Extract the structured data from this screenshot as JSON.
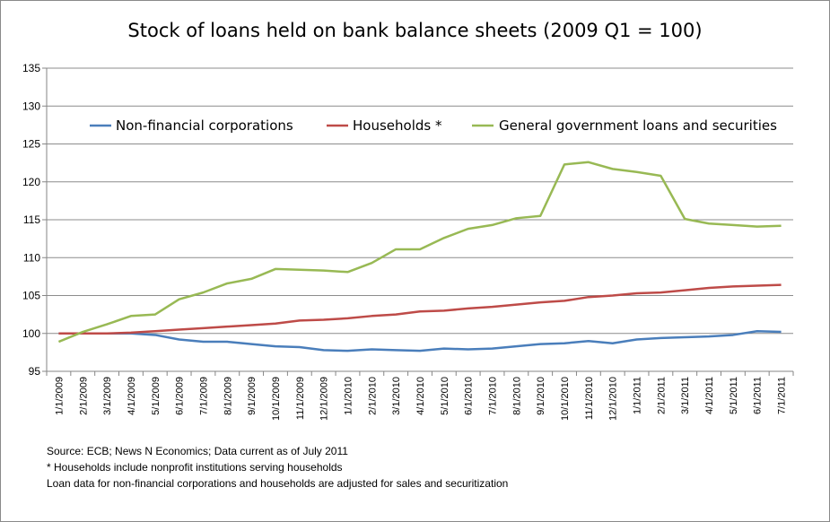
{
  "chart_data": {
    "type": "line",
    "title": "Stock of loans held on bank balance sheets (2009 Q1 = 100)",
    "xlabel": "",
    "ylabel": "",
    "ylim": [
      95,
      135
    ],
    "yticks": [
      95,
      100,
      105,
      110,
      115,
      120,
      125,
      130,
      135
    ],
    "grid": true,
    "legend_position": "top",
    "categories": [
      "1/1/2009",
      "2/1/2009",
      "3/1/2009",
      "4/1/2009",
      "5/1/2009",
      "6/1/2009",
      "7/1/2009",
      "8/1/2009",
      "9/1/2009",
      "10/1/2009",
      "11/1/2009",
      "12/1/2009",
      "1/1/2010",
      "2/1/2010",
      "3/1/2010",
      "4/1/2010",
      "5/1/2010",
      "6/1/2010",
      "7/1/2010",
      "8/1/2010",
      "9/1/2010",
      "10/1/2010",
      "11/1/2010",
      "12/1/2010",
      "1/1/2011",
      "2/1/2011",
      "3/1/2011",
      "4/1/2011",
      "5/1/2011",
      "6/1/2011",
      "7/1/2011"
    ],
    "series": [
      {
        "name": "Non-financial corporations",
        "color": "#4a7ebb",
        "values": [
          100.0,
          100.0,
          100.0,
          100.0,
          99.8,
          99.2,
          98.9,
          98.9,
          98.6,
          98.3,
          98.2,
          97.8,
          97.7,
          97.9,
          97.8,
          97.7,
          98.0,
          97.9,
          98.0,
          98.3,
          98.6,
          98.7,
          99.0,
          98.7,
          99.2,
          99.4,
          99.5,
          99.6,
          99.8,
          100.3,
          100.2
        ]
      },
      {
        "name": "Households *",
        "color": "#be4b48",
        "values": [
          100.0,
          100.0,
          100.0,
          100.1,
          100.3,
          100.5,
          100.7,
          100.9,
          101.1,
          101.3,
          101.7,
          101.8,
          102.0,
          102.3,
          102.5,
          102.9,
          103.0,
          103.3,
          103.5,
          103.8,
          104.1,
          104.3,
          104.8,
          105.0,
          105.3,
          105.4,
          105.7,
          106.0,
          106.2,
          106.3,
          106.4
        ]
      },
      {
        "name": "General government loans and securities",
        "color": "#98b954",
        "values": [
          98.9,
          100.2,
          101.2,
          102.3,
          102.5,
          104.5,
          105.4,
          106.6,
          107.2,
          108.5,
          108.4,
          108.3,
          108.1,
          109.3,
          111.1,
          111.1,
          112.6,
          113.8,
          114.3,
          115.2,
          115.5,
          122.3,
          122.6,
          121.7,
          121.3,
          120.8,
          115.1,
          114.5,
          114.3,
          114.1,
          114.2
        ]
      }
    ]
  },
  "notes": {
    "source": "Source: ECB; News N Economics; Data current as of July 2011",
    "footnote": "* Households include nonprofit institutions serving households",
    "adjustment": "Loan data for non-financial corporations and households are adjusted for sales and securitization"
  }
}
